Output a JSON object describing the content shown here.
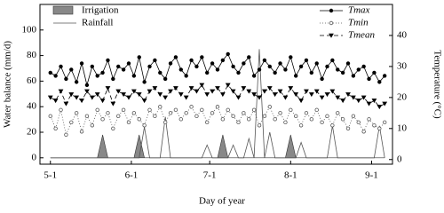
{
  "chart_data": {
    "type": "line",
    "x_label": "Day of year",
    "y_label": "Water balance (mm/d)",
    "y2_label": "Temperature (°C)",
    "x": [
      121,
      123,
      125,
      127,
      129,
      131,
      133,
      135,
      137,
      139,
      141,
      143,
      145,
      147,
      149,
      151,
      153,
      155,
      157,
      159,
      161,
      163,
      165,
      167,
      169,
      171,
      173,
      175,
      177,
      179,
      181,
      183,
      185,
      187,
      189,
      191,
      193,
      195,
      197,
      199,
      201,
      203,
      205,
      207,
      209,
      211,
      213,
      215,
      217,
      219,
      221,
      223,
      225,
      227,
      229,
      231,
      233,
      235,
      237,
      239,
      241,
      243,
      245,
      247,
      249
    ],
    "xlim": [
      117,
      252
    ],
    "xticks": [
      {
        "value": 121,
        "label": "5-1"
      },
      {
        "value": 152,
        "label": "6-1"
      },
      {
        "value": 182,
        "label": "7-1"
      },
      {
        "value": 213,
        "label": "8-1"
      },
      {
        "value": 244,
        "label": "9-1"
      }
    ],
    "ylim": [
      -5,
      120
    ],
    "yticks": [
      0,
      20,
      40,
      60,
      80,
      100
    ],
    "y2lim": [
      -1.5,
      50
    ],
    "y2ticks": [
      0,
      10,
      20,
      30,
      40
    ],
    "series": [
      {
        "name": "Irrigation",
        "style": "area",
        "color": "#888888",
        "values": [
          0,
          0,
          0,
          0,
          0,
          0,
          0,
          0,
          0,
          0,
          18,
          0,
          0,
          0,
          0,
          0,
          0,
          18,
          0,
          0,
          0,
          0,
          0,
          0,
          0,
          0,
          0,
          0,
          0,
          0,
          0,
          0,
          0,
          18,
          0,
          0,
          0,
          0,
          0,
          0,
          0,
          0,
          0,
          0,
          0,
          0,
          18,
          0,
          0,
          0,
          0,
          0,
          0,
          0,
          0,
          0,
          0,
          0,
          0,
          0,
          0,
          0,
          0,
          0,
          0
        ]
      },
      {
        "name": "Rainfall",
        "style": "line",
        "color": "#555555",
        "values": [
          0,
          0,
          0,
          0,
          0,
          0,
          0,
          0,
          0,
          0,
          0,
          0,
          0,
          0,
          0,
          0,
          0,
          0,
          24,
          0,
          0,
          0,
          32,
          0,
          0,
          0,
          0,
          0,
          0,
          0,
          10,
          0,
          0,
          0,
          0,
          10,
          0,
          0,
          15,
          0,
          85,
          0,
          20,
          0,
          0,
          0,
          0,
          0,
          12,
          0,
          0,
          0,
          0,
          0,
          25,
          0,
          0,
          0,
          0,
          0,
          0,
          0,
          0,
          25,
          0
        ]
      },
      {
        "name": "Tmax",
        "axis": "y2",
        "marker": "dot",
        "dash": "",
        "color": "#000000",
        "values": [
          28,
          27,
          30,
          26,
          29,
          25,
          31,
          24,
          30,
          27,
          28,
          32,
          26,
          30,
          29,
          31,
          27,
          33,
          25,
          30,
          32,
          28,
          26,
          31,
          33,
          29,
          27,
          32,
          30,
          33,
          28,
          31,
          29,
          32,
          34,
          30,
          28,
          31,
          33,
          27,
          29,
          32,
          30,
          28,
          31,
          29,
          33,
          27,
          30,
          32,
          28,
          31,
          26,
          30,
          32,
          29,
          28,
          31,
          27,
          29,
          30,
          26,
          28,
          25,
          27
        ]
      },
      {
        "name": "Tmin",
        "axis": "y2",
        "marker": "circle",
        "dash": "1 2",
        "color": "#555555",
        "values": [
          14,
          10,
          16,
          8,
          12,
          15,
          9,
          14,
          11,
          16,
          13,
          15,
          10,
          14,
          16,
          12,
          15,
          13,
          11,
          16,
          14,
          17,
          12,
          15,
          16,
          13,
          15,
          17,
          14,
          16,
          12,
          15,
          17,
          13,
          16,
          14,
          12,
          15,
          13,
          16,
          11,
          14,
          17,
          13,
          15,
          12,
          16,
          14,
          11,
          15,
          13,
          16,
          12,
          14,
          11,
          15,
          13,
          10,
          14,
          12,
          9,
          13,
          11,
          10,
          12
        ]
      },
      {
        "name": "Tmean",
        "axis": "y2",
        "marker": "triangle",
        "dash": "5 3",
        "color": "#000000",
        "values": [
          20,
          19,
          22,
          18,
          21,
          20,
          19,
          22,
          20,
          21,
          19,
          23,
          18,
          22,
          21,
          20,
          22,
          21,
          19,
          22,
          23,
          21,
          20,
          22,
          23,
          21,
          20,
          23,
          22,
          24,
          21,
          22,
          23,
          21,
          24,
          22,
          20,
          23,
          22,
          21,
          20,
          22,
          23,
          21,
          22,
          20,
          23,
          21,
          19,
          22,
          21,
          22,
          20,
          21,
          22,
          20,
          19,
          21,
          20,
          19,
          20,
          18,
          19,
          17,
          18
        ]
      }
    ]
  }
}
